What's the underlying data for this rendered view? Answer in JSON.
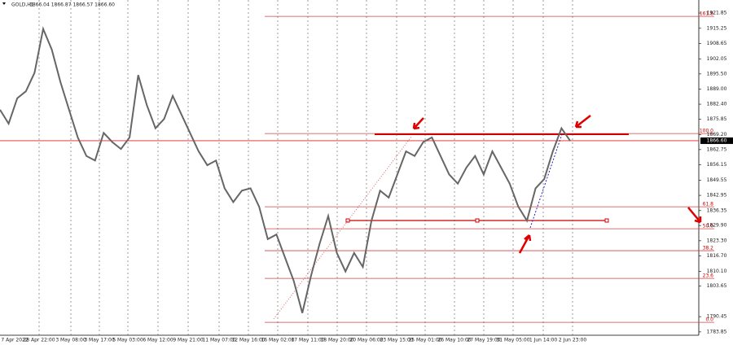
{
  "chart_data": {
    "type": "line",
    "title": "GOLD,H1",
    "ohlc": "1866.04 1866.87 1866.57 1866.60",
    "color": "#666666",
    "values": [
      1880,
      1874,
      1885,
      1888,
      1896,
      1915,
      1906,
      1892,
      1880,
      1868,
      1860,
      1858,
      1870,
      1866,
      1863,
      1868,
      1895,
      1882,
      1872,
      1876,
      1886,
      1878,
      1870,
      1862,
      1856,
      1858,
      1846,
      1840,
      1845,
      1846,
      1838,
      1824,
      1826,
      1816,
      1806,
      1792,
      1808,
      1822,
      1834,
      1818,
      1810,
      1818,
      1812,
      1832,
      1845,
      1842,
      1852,
      1862,
      1860,
      1866,
      1868,
      1860,
      1852,
      1848,
      1855,
      1860,
      1852,
      1862,
      1855,
      1848,
      1838,
      1832,
      1846,
      1850,
      1862,
      1872,
      1866.6
    ],
    "ylim": [
      1782.4,
      1927.5
    ],
    "yticks": [
      1921.85,
      1915.25,
      1908.65,
      1902.05,
      {
        "value": 1895.5,
        "label": "1895.50"
      },
      {
        "value": 1889,
        "label": "1889.00"
      },
      {
        "value": 1882.4,
        "label": "1882.40"
      },
      1875.85,
      {
        "value": 1869.2,
        "label": "1869.20"
      },
      1862.75,
      1856.15,
      1849.55,
      1842.95,
      1836.35,
      {
        "value": 1829.9,
        "label": "1829.90"
      },
      {
        "value": 1823.3,
        "label": "1823.30"
      },
      {
        "value": 1816.7,
        "label": "1816.70"
      },
      {
        "value": 1810.1,
        "label": "1810.10"
      },
      1803.65,
      1790.45,
      1783.85
    ],
    "xlabels": [
      "7 Apr 2022",
      "28 Apr 22:00",
      "3 May 08:00",
      "3 May 17:00",
      "5 May 03:00",
      "6 May 12:00",
      "9 May 21:00",
      "11 May 07:00",
      "12 May 16:00",
      "16 May 02:00",
      "17 May 11:00",
      "18 May 20:00",
      "20 May 06:00",
      "23 May 15:00",
      "25 May 01:00",
      "26 May 10:00",
      "27 May 19:00",
      "31 May 05:00",
      "1 Jun 14:00",
      "2 Jun 23:00"
    ],
    "fib_levels": [
      {
        "label": "161.8",
        "value": 1920.4
      },
      {
        "label": "100.0",
        "value": 1869.7
      },
      {
        "label": "61.8",
        "value": 1838
      },
      {
        "label": "50.0",
        "value": 1828.5
      },
      {
        "label": "38.2",
        "value": 1819
      },
      {
        "label": "23.6",
        "value": 1807
      },
      {
        "label": "0.0",
        "value": 1788
      }
    ],
    "last_price": {
      "value": 1866.6,
      "label": "1866.60"
    }
  }
}
